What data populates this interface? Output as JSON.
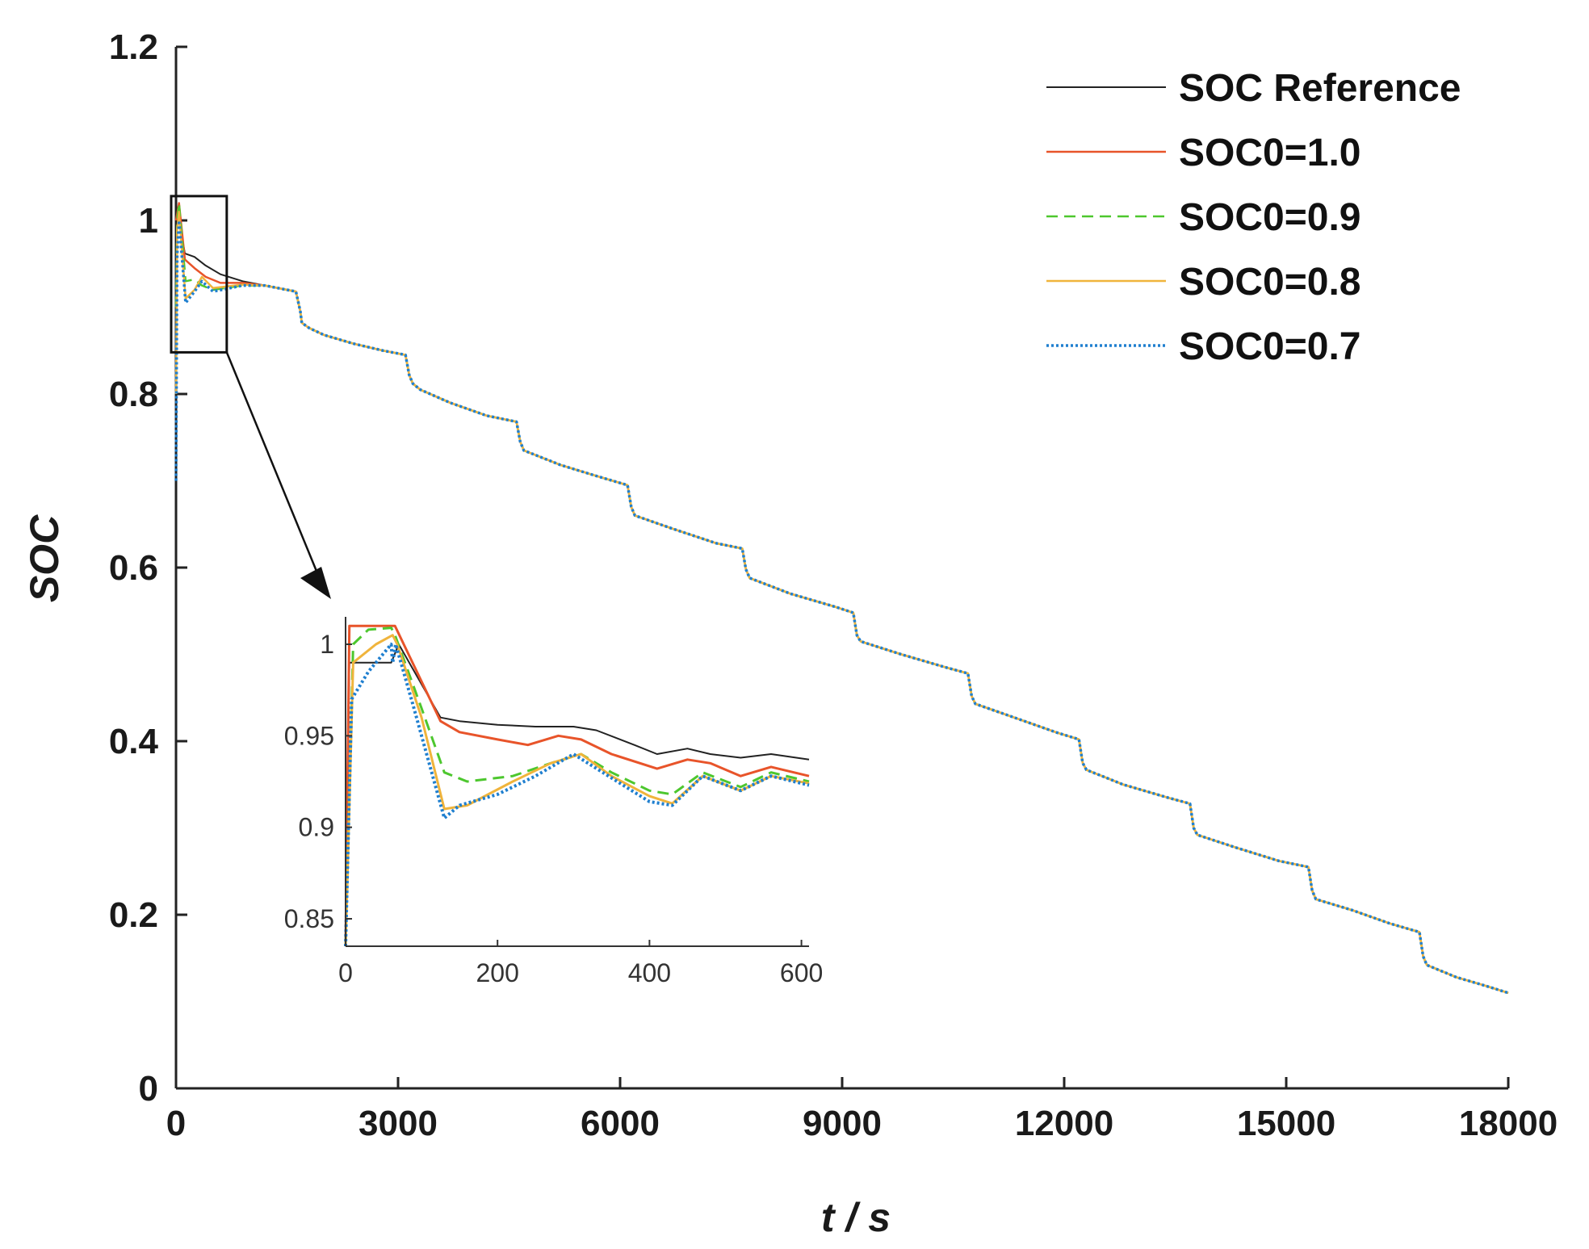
{
  "chart_data": {
    "type": "line",
    "title": "",
    "xlabel": "t / s",
    "ylabel": "SOC",
    "xlim": [
      0,
      18000
    ],
    "ylim": [
      0,
      1.2
    ],
    "xticks": [
      "0",
      "3000",
      "6000",
      "9000",
      "12000",
      "15000",
      "18000"
    ],
    "yticks": [
      "0",
      "0.2",
      "0.4",
      "0.6",
      "0.8",
      "1",
      "1.2"
    ],
    "legend_position": "top-right",
    "colors": {
      "ref": "#222222",
      "s10": "#e8542a",
      "s09": "#4dc72e",
      "s08": "#f0b43c",
      "s07": "#1f7fcf"
    },
    "series": [
      {
        "key": "ref",
        "name": "SOC Reference",
        "style": "solid"
      },
      {
        "key": "s10",
        "name": "SOC0=1.0",
        "style": "solid"
      },
      {
        "key": "s09",
        "name": "SOC0=0.9",
        "style": "dashed"
      },
      {
        "key": "s08",
        "name": "SOC0=0.8",
        "style": "solid"
      },
      {
        "key": "s07",
        "name": "SOC0=0.7",
        "style": "dotted"
      }
    ],
    "main_curve": [
      [
        0,
        1.0
      ],
      [
        70,
        0.97
      ],
      [
        130,
        0.955
      ],
      [
        250,
        0.948
      ],
      [
        400,
        0.94
      ],
      [
        600,
        0.932
      ],
      [
        900,
        0.93
      ],
      [
        1200,
        0.925
      ],
      [
        1500,
        0.92
      ],
      [
        1620,
        0.918
      ],
      [
        1680,
        0.895
      ],
      [
        1700,
        0.882
      ],
      [
        1800,
        0.876
      ],
      [
        2000,
        0.868
      ],
      [
        2400,
        0.858
      ],
      [
        2800,
        0.85
      ],
      [
        3100,
        0.845
      ],
      [
        3150,
        0.822
      ],
      [
        3200,
        0.812
      ],
      [
        3300,
        0.805
      ],
      [
        3700,
        0.79
      ],
      [
        4200,
        0.775
      ],
      [
        4600,
        0.768
      ],
      [
        4650,
        0.745
      ],
      [
        4700,
        0.735
      ],
      [
        5200,
        0.718
      ],
      [
        5700,
        0.705
      ],
      [
        6100,
        0.695
      ],
      [
        6150,
        0.67
      ],
      [
        6200,
        0.66
      ],
      [
        6700,
        0.645
      ],
      [
        7300,
        0.628
      ],
      [
        7650,
        0.622
      ],
      [
        7700,
        0.598
      ],
      [
        7750,
        0.588
      ],
      [
        8300,
        0.57
      ],
      [
        8900,
        0.555
      ],
      [
        9150,
        0.548
      ],
      [
        9200,
        0.522
      ],
      [
        9250,
        0.515
      ],
      [
        9800,
        0.5
      ],
      [
        10400,
        0.485
      ],
      [
        10700,
        0.478
      ],
      [
        10750,
        0.452
      ],
      [
        10800,
        0.443
      ],
      [
        11300,
        0.428
      ],
      [
        11900,
        0.41
      ],
      [
        12200,
        0.402
      ],
      [
        12250,
        0.375
      ],
      [
        12300,
        0.367
      ],
      [
        12800,
        0.35
      ],
      [
        13400,
        0.335
      ],
      [
        13700,
        0.328
      ],
      [
        13750,
        0.3
      ],
      [
        13800,
        0.292
      ],
      [
        14300,
        0.278
      ],
      [
        14900,
        0.262
      ],
      [
        15300,
        0.255
      ],
      [
        15350,
        0.228
      ],
      [
        15400,
        0.218
      ],
      [
        15900,
        0.205
      ],
      [
        16400,
        0.19
      ],
      [
        16800,
        0.18
      ],
      [
        16850,
        0.152
      ],
      [
        16900,
        0.142
      ],
      [
        17300,
        0.128
      ],
      [
        17700,
        0.118
      ],
      [
        18000,
        0.11
      ]
    ],
    "main_start": {
      "ref": [
        [
          0,
          1.0
        ],
        [
          40,
          1.0
        ]
      ],
      "s10": [
        [
          0,
          1.0
        ],
        [
          40,
          1.02
        ]
      ],
      "s09": [
        [
          0,
          0.9
        ],
        [
          15,
          1.0
        ],
        [
          40,
          1.02
        ]
      ],
      "s08": [
        [
          0,
          0.8
        ],
        [
          15,
          0.99
        ],
        [
          40,
          1.01
        ]
      ],
      "s07": [
        [
          0,
          0.7
        ],
        [
          15,
          0.96
        ],
        [
          40,
          1.0
        ]
      ]
    },
    "main_overlay": {
      "ref": [
        [
          40,
          1.0
        ],
        [
          120,
          0.962
        ],
        [
          250,
          0.958
        ],
        [
          400,
          0.948
        ],
        [
          600,
          0.938
        ],
        [
          900,
          0.93
        ]
      ],
      "s10": [
        [
          40,
          1.02
        ],
        [
          120,
          0.955
        ],
        [
          250,
          0.945
        ],
        [
          400,
          0.935
        ],
        [
          600,
          0.928
        ],
        [
          900,
          0.928
        ]
      ],
      "s09": [
        [
          40,
          1.02
        ],
        [
          130,
          0.93
        ],
        [
          250,
          0.932
        ],
        [
          350,
          0.925
        ],
        [
          500,
          0.92
        ],
        [
          900,
          0.925
        ]
      ],
      "s08": [
        [
          40,
          1.01
        ],
        [
          130,
          0.91
        ],
        [
          250,
          0.92
        ],
        [
          350,
          0.935
        ],
        [
          500,
          0.922
        ],
        [
          900,
          0.926
        ]
      ],
      "s07": [
        [
          40,
          1.0
        ],
        [
          130,
          0.905
        ],
        [
          250,
          0.918
        ],
        [
          350,
          0.93
        ],
        [
          500,
          0.918
        ],
        [
          900,
          0.925
        ]
      ]
    },
    "inset": {
      "xlim": [
        0,
        610
      ],
      "ylim": [
        0.835,
        1.015
      ],
      "xticks": [
        "0",
        "200",
        "400",
        "600"
      ],
      "yticks": [
        "0.85",
        "0.9",
        "0.95",
        "1"
      ],
      "zoom_box_x": [
        0,
        620
      ],
      "zoom_box_y": [
        0.848,
        1.028
      ],
      "ref": [
        [
          0,
          0.835
        ],
        [
          5,
          0.99
        ],
        [
          60,
          0.99
        ],
        [
          70,
          1.0
        ],
        [
          125,
          0.96
        ],
        [
          150,
          0.958
        ],
        [
          200,
          0.956
        ],
        [
          250,
          0.955
        ],
        [
          300,
          0.955
        ],
        [
          330,
          0.953
        ],
        [
          380,
          0.945
        ],
        [
          410,
          0.94
        ],
        [
          450,
          0.943
        ],
        [
          480,
          0.94
        ],
        [
          520,
          0.938
        ],
        [
          560,
          0.94
        ],
        [
          610,
          0.937
        ]
      ],
      "s10": [
        [
          0,
          0.835
        ],
        [
          5,
          1.01
        ],
        [
          60,
          1.01
        ],
        [
          65,
          1.01
        ],
        [
          125,
          0.958
        ],
        [
          150,
          0.952
        ],
        [
          200,
          0.948
        ],
        [
          240,
          0.945
        ],
        [
          280,
          0.95
        ],
        [
          310,
          0.948
        ],
        [
          350,
          0.94
        ],
        [
          410,
          0.932
        ],
        [
          450,
          0.937
        ],
        [
          480,
          0.935
        ],
        [
          520,
          0.928
        ],
        [
          560,
          0.933
        ],
        [
          610,
          0.928
        ]
      ],
      "s09": [
        [
          0,
          0.835
        ],
        [
          10,
          1.0
        ],
        [
          30,
          1.008
        ],
        [
          60,
          1.009
        ],
        [
          65,
          1.005
        ],
        [
          100,
          0.965
        ],
        [
          130,
          0.93
        ],
        [
          160,
          0.925
        ],
        [
          220,
          0.928
        ],
        [
          270,
          0.935
        ],
        [
          310,
          0.94
        ],
        [
          350,
          0.93
        ],
        [
          400,
          0.92
        ],
        [
          430,
          0.918
        ],
        [
          470,
          0.93
        ],
        [
          520,
          0.922
        ],
        [
          560,
          0.93
        ],
        [
          610,
          0.925
        ]
      ],
      "s08": [
        [
          0,
          0.835
        ],
        [
          10,
          0.99
        ],
        [
          40,
          1.0
        ],
        [
          62,
          1.005
        ],
        [
          68,
          1.0
        ],
        [
          100,
          0.96
        ],
        [
          130,
          0.91
        ],
        [
          160,
          0.912
        ],
        [
          220,
          0.925
        ],
        [
          270,
          0.935
        ],
        [
          310,
          0.94
        ],
        [
          350,
          0.928
        ],
        [
          400,
          0.917
        ],
        [
          430,
          0.913
        ],
        [
          470,
          0.928
        ],
        [
          520,
          0.92
        ],
        [
          560,
          0.928
        ],
        [
          610,
          0.924
        ]
      ],
      "s07": [
        [
          0,
          0.835
        ],
        [
          8,
          0.97
        ],
        [
          30,
          0.985
        ],
        [
          60,
          1.0
        ],
        [
          62,
          0.99
        ],
        [
          66,
          1.0
        ],
        [
          90,
          0.965
        ],
        [
          130,
          0.905
        ],
        [
          150,
          0.912
        ],
        [
          200,
          0.918
        ],
        [
          250,
          0.928
        ],
        [
          300,
          0.94
        ],
        [
          350,
          0.927
        ],
        [
          400,
          0.914
        ],
        [
          430,
          0.912
        ],
        [
          470,
          0.928
        ],
        [
          520,
          0.92
        ],
        [
          560,
          0.928
        ],
        [
          610,
          0.923
        ]
      ]
    }
  }
}
